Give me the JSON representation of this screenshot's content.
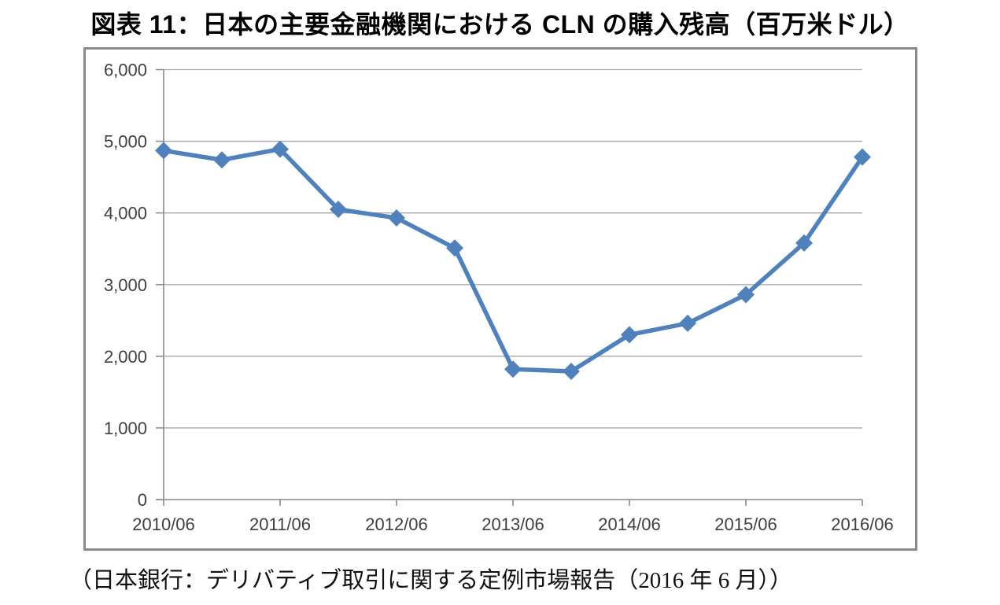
{
  "chart_data": {
    "type": "line",
    "title": "図表 11：日本の主要金融機関における CLN の購入残高（百万米ドル）",
    "source_note": "（日本銀行：デリバティブ取引に関する定例市場報告（2016 年 6 月））",
    "categories": [
      "2010/06",
      "2010/12",
      "2011/06",
      "2011/12",
      "2012/06",
      "2012/12",
      "2013/06",
      "2013/12",
      "2014/06",
      "2014/12",
      "2015/06",
      "2015/12",
      "2016/06"
    ],
    "values": [
      4870,
      4740,
      4890,
      4050,
      3930,
      3510,
      1820,
      1790,
      2300,
      2460,
      2860,
      3580,
      4780
    ],
    "x_tick_labels": [
      "2010/06",
      "2011/06",
      "2012/06",
      "2013/06",
      "2014/06",
      "2015/06",
      "2016/06"
    ],
    "y_ticks": [
      0,
      1000,
      2000,
      3000,
      4000,
      5000,
      6000
    ],
    "y_tick_labels": [
      "0",
      "1,000",
      "2,000",
      "3,000",
      "4,000",
      "5,000",
      "6,000"
    ],
    "ylim": [
      0,
      6000
    ],
    "xlabel": "",
    "ylabel": "",
    "grid": true,
    "legend": "none",
    "marker": "diamond",
    "colors": {
      "line": "#4F81BD",
      "marker": "#4F81BD",
      "gridline": "#A6A6A6",
      "axis": "#898989",
      "tick_label": "#3F3F3F",
      "frame_border": "#8A8A8A",
      "title_text": "#000000"
    }
  }
}
